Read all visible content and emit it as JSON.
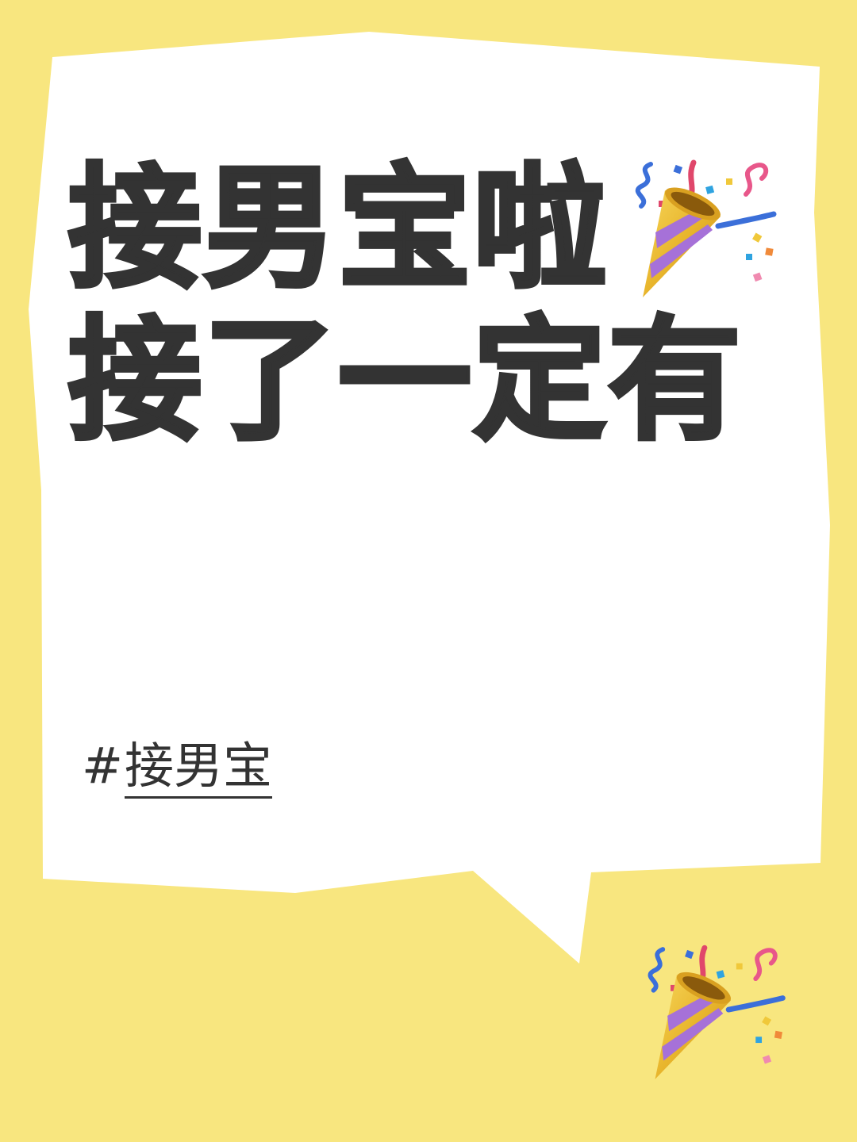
{
  "headline": {
    "line1": "接男宝啦",
    "line2": "接了一定有"
  },
  "hashtag": {
    "symbol": "#",
    "text": "接男宝"
  },
  "colors": {
    "background": "#f8e67f",
    "bubble": "#ffffff",
    "text": "#333333"
  },
  "icons": [
    "party-popper-icon",
    "party-popper-icon"
  ]
}
